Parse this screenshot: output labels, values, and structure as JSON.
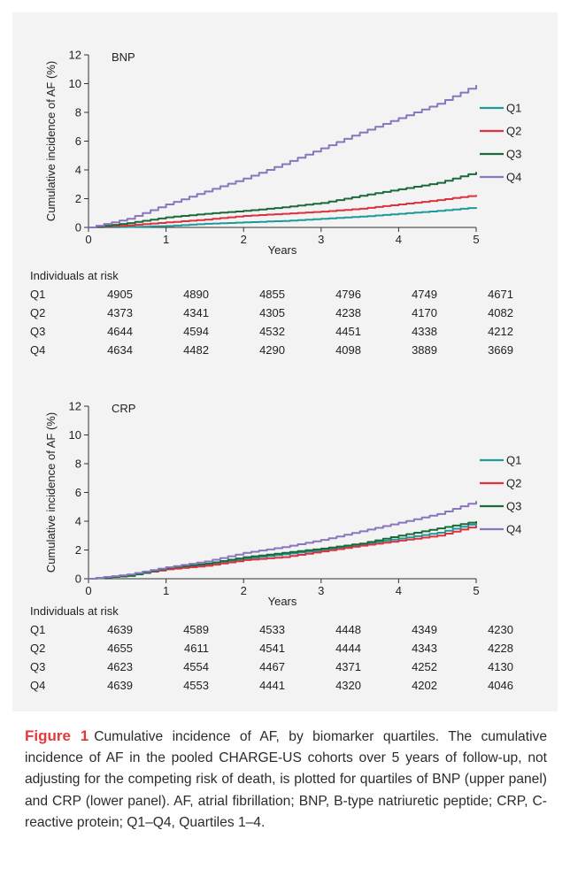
{
  "chart_data": [
    {
      "type": "line",
      "panel_label": "BNP",
      "ylabel": "Cumulative incidence of AF (%)",
      "xlabel": "Years",
      "xlim": [
        0,
        5
      ],
      "ylim": [
        0,
        12
      ],
      "x_ticks": [
        0,
        1,
        2,
        3,
        4,
        5
      ],
      "y_ticks": [
        0,
        2,
        4,
        6,
        8,
        10,
        12
      ],
      "legend_position": "right",
      "x": [
        0,
        0.5,
        1,
        1.5,
        2,
        2.5,
        3,
        3.5,
        4,
        4.5,
        5
      ],
      "series": [
        {
          "name": "Q1",
          "color": "#1f9a9a",
          "values": [
            0,
            0.03,
            0.1,
            0.25,
            0.35,
            0.45,
            0.6,
            0.75,
            0.95,
            1.15,
            1.4
          ]
        },
        {
          "name": "Q2",
          "color": "#e0313f",
          "values": [
            0,
            0.15,
            0.35,
            0.55,
            0.8,
            0.95,
            1.1,
            1.3,
            1.6,
            1.9,
            2.25
          ]
        },
        {
          "name": "Q3",
          "color": "#1b6b3a",
          "values": [
            0,
            0.3,
            0.7,
            0.95,
            1.15,
            1.4,
            1.7,
            2.2,
            2.65,
            3.1,
            3.85
          ]
        },
        {
          "name": "Q4",
          "color": "#8a76bd",
          "values": [
            0,
            0.6,
            1.6,
            2.5,
            3.4,
            4.4,
            5.5,
            6.6,
            7.6,
            8.6,
            9.9
          ]
        }
      ],
      "risk_table": {
        "title": "Individuals at risk",
        "rows": [
          {
            "label": "Q1",
            "values": [
              "4905",
              "4890",
              "4855",
              "4796",
              "4749",
              "4671"
            ]
          },
          {
            "label": "Q2",
            "values": [
              "4373",
              "4341",
              "4305",
              "4238",
              "4170",
              "4082"
            ]
          },
          {
            "label": "Q3",
            "values": [
              "4644",
              "4594",
              "4532",
              "4451",
              "4338",
              "4212"
            ]
          },
          {
            "label": "Q4",
            "values": [
              "4634",
              "4482",
              "4290",
              "4098",
              "3889",
              "3669"
            ]
          }
        ]
      }
    },
    {
      "type": "line",
      "panel_label": "CRP",
      "ylabel": "Cumulative incidence of AF (%)",
      "xlabel": "Years",
      "xlim": [
        0,
        5
      ],
      "ylim": [
        0,
        12
      ],
      "x_ticks": [
        0,
        1,
        2,
        3,
        4,
        5
      ],
      "y_ticks": [
        0,
        2,
        4,
        6,
        8,
        10,
        12
      ],
      "legend_position": "right",
      "x": [
        0,
        0.5,
        1,
        1.5,
        2,
        2.5,
        3,
        3.5,
        4,
        4.5,
        5
      ],
      "series": [
        {
          "name": "Q1",
          "color": "#1f9a9a",
          "values": [
            0,
            0.2,
            0.7,
            0.95,
            1.4,
            1.7,
            2.0,
            2.4,
            2.8,
            3.2,
            3.9
          ]
        },
        {
          "name": "Q2",
          "color": "#e0313f",
          "values": [
            0,
            0.25,
            0.65,
            0.9,
            1.3,
            1.5,
            1.9,
            2.3,
            2.65,
            3.0,
            3.7
          ]
        },
        {
          "name": "Q3",
          "color": "#1b6b3a",
          "values": [
            0,
            0.2,
            0.75,
            1.05,
            1.5,
            1.8,
            2.1,
            2.45,
            3.0,
            3.5,
            4.0
          ]
        },
        {
          "name": "Q4",
          "color": "#8a76bd",
          "values": [
            0,
            0.3,
            0.8,
            1.2,
            1.8,
            2.2,
            2.7,
            3.3,
            3.9,
            4.5,
            5.4
          ]
        }
      ],
      "risk_table": {
        "title": "Individuals at risk",
        "rows": [
          {
            "label": "Q1",
            "values": [
              "4639",
              "4589",
              "4533",
              "4448",
              "4349",
              "4230"
            ]
          },
          {
            "label": "Q2",
            "values": [
              "4655",
              "4611",
              "4541",
              "4444",
              "4343",
              "4228"
            ]
          },
          {
            "label": "Q3",
            "values": [
              "4623",
              "4554",
              "4467",
              "4371",
              "4252",
              "4130"
            ]
          },
          {
            "label": "Q4",
            "values": [
              "4639",
              "4553",
              "4441",
              "4320",
              "4202",
              "4046"
            ]
          }
        ]
      }
    }
  ],
  "caption": {
    "label": "Figure 1",
    "text": "Cumulative incidence of AF, by biomarker quartiles. The cumulative incidence of AF in the pooled CHARGE-US cohorts over 5 years of follow-up, not adjusting for the competing risk of death, is plotted for quartiles of BNP (upper panel) and CRP (lower panel). AF, atrial fibrillation; BNP, B-type natriuretic peptide; CRP, C-reactive protein; Q1–Q4, Quartiles 1–4."
  }
}
